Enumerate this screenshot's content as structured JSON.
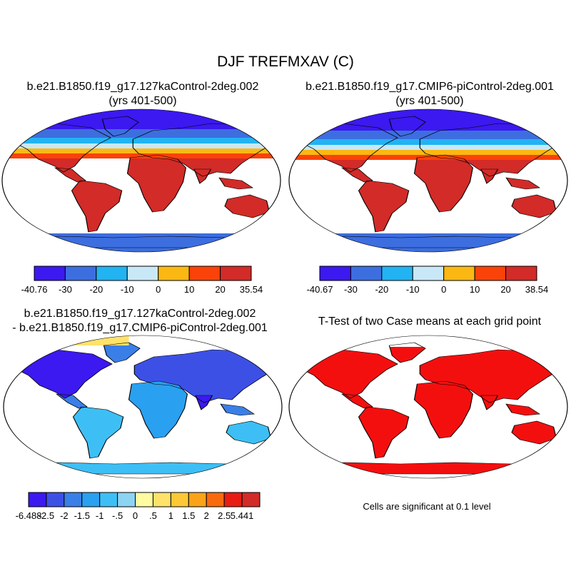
{
  "chart_data": [
    {
      "type": "heatmap",
      "title": "DJF TREFMXAV (C)",
      "panel_title_line1": "b.e21.B1850.f19_g17.127kaControl-2deg.002",
      "panel_title_line2": "(yrs 401-500)",
      "colorbar": {
        "levels": [
          -30,
          -20,
          -10,
          0,
          10,
          20
        ],
        "min_label": "-40.76",
        "max_label": "35.54",
        "tick_labels": [
          "-40.76",
          "-30",
          "-20",
          "-10",
          "0",
          "10",
          "20",
          "35.54"
        ],
        "colors": [
          "#3b19f0",
          "#3d6ee0",
          "#22b3f3",
          "#c8e8f8",
          "#fbb812",
          "#fb4208",
          "#d22b28"
        ]
      }
    },
    {
      "type": "heatmap",
      "panel_title_line1": "b.e21.B1850.f19_g17.CMIP6-piControl-2deg.001",
      "panel_title_line2": "(yrs 401-500)",
      "colorbar": {
        "levels": [
          -30,
          -20,
          -10,
          0,
          10,
          20
        ],
        "min_label": "-40.67",
        "max_label": "38.54",
        "tick_labels": [
          "-40.67",
          "-30",
          "-20",
          "-10",
          "0",
          "10",
          "20",
          "38.54"
        ],
        "colors": [
          "#3b19f0",
          "#3d6ee0",
          "#22b3f3",
          "#c8e8f8",
          "#fbb812",
          "#fb4208",
          "#d22b28"
        ]
      }
    },
    {
      "type": "heatmap",
      "panel_title_line1": "b.e21.B1850.f19_g17.127kaControl-2deg.002",
      "panel_title_line2": "- b.e21.B1850.f19_g17.CMIP6-piControl-2deg.001",
      "colorbar": {
        "levels": [
          -2.5,
          -2,
          -1.5,
          -1,
          -0.5,
          0,
          0.5,
          1,
          1.5,
          2,
          2.5
        ],
        "tick_labels": [
          "-6.488",
          "-2.5",
          "-2",
          "-1.5",
          "-1",
          "-.5",
          "0",
          ".5",
          "1",
          "1.5",
          "2",
          "2.5",
          "5.441"
        ],
        "colors": [
          "#3b19f0",
          "#3d50e6",
          "#3a7fe8",
          "#2aa0f0",
          "#3dbff5",
          "#8dd3f2",
          "#fffba0",
          "#ffe26a",
          "#fdc836",
          "#fba318",
          "#f96a0e",
          "#e81c12",
          "#d22b28"
        ]
      }
    },
    {
      "type": "heatmap",
      "panel_title_line1": "T-Test of two Case means at each grid point",
      "note": "Cells are significant at 0.1 level",
      "significant_color": "#f40f0f"
    }
  ]
}
